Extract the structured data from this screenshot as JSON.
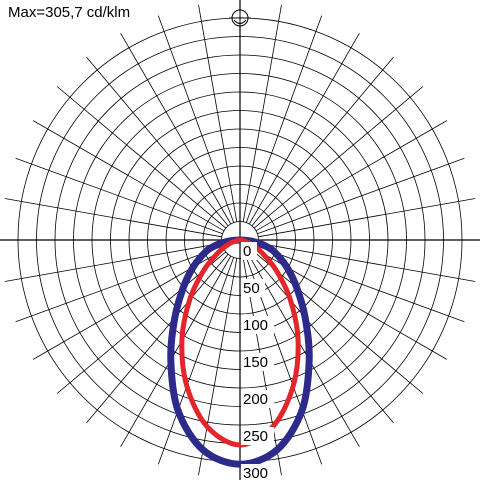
{
  "chart_data": {
    "type": "polar",
    "subtitle": "Max=305,7 cd/klm",
    "max_value": 305.7,
    "unit": "cd/klm",
    "radial_ticks": [
      0,
      50,
      100,
      150,
      200,
      250,
      300
    ],
    "radial_labels": [
      "0",
      "50",
      "100",
      "150",
      "200",
      "250",
      "300"
    ],
    "rlim": [
      0,
      320
    ],
    "angular_step_deg": 10,
    "grid": true,
    "zero_direction": "down",
    "series": [
      {
        "key": "c0-c180",
        "color": "#2e2a8c",
        "angles": [
          -90,
          -85,
          -80,
          -75,
          -70,
          -60,
          -50,
          -40,
          -30,
          -20,
          -10,
          0,
          10,
          20,
          30,
          40,
          50,
          60,
          70,
          75,
          80,
          85,
          90
        ],
        "values": [
          0,
          14,
          28,
          40,
          51,
          73,
          100,
          137,
          187,
          245,
          288,
          303,
          288,
          245,
          187,
          137,
          100,
          73,
          51,
          40,
          28,
          14,
          0
        ]
      },
      {
        "key": "c90-c270",
        "color": "#e3262b",
        "angles": [
          -90,
          -80,
          -70,
          -60,
          -50,
          -40,
          -30,
          -20,
          -10,
          0,
          10,
          20,
          30,
          40,
          50,
          60,
          70,
          80,
          90
        ],
        "values": [
          0,
          4,
          16,
          34,
          64,
          106,
          157,
          210,
          256,
          277,
          256,
          210,
          157,
          106,
          64,
          34,
          16,
          4,
          0
        ]
      }
    ]
  },
  "icons": {
    "plane_symbol": "c-plane-icon"
  }
}
